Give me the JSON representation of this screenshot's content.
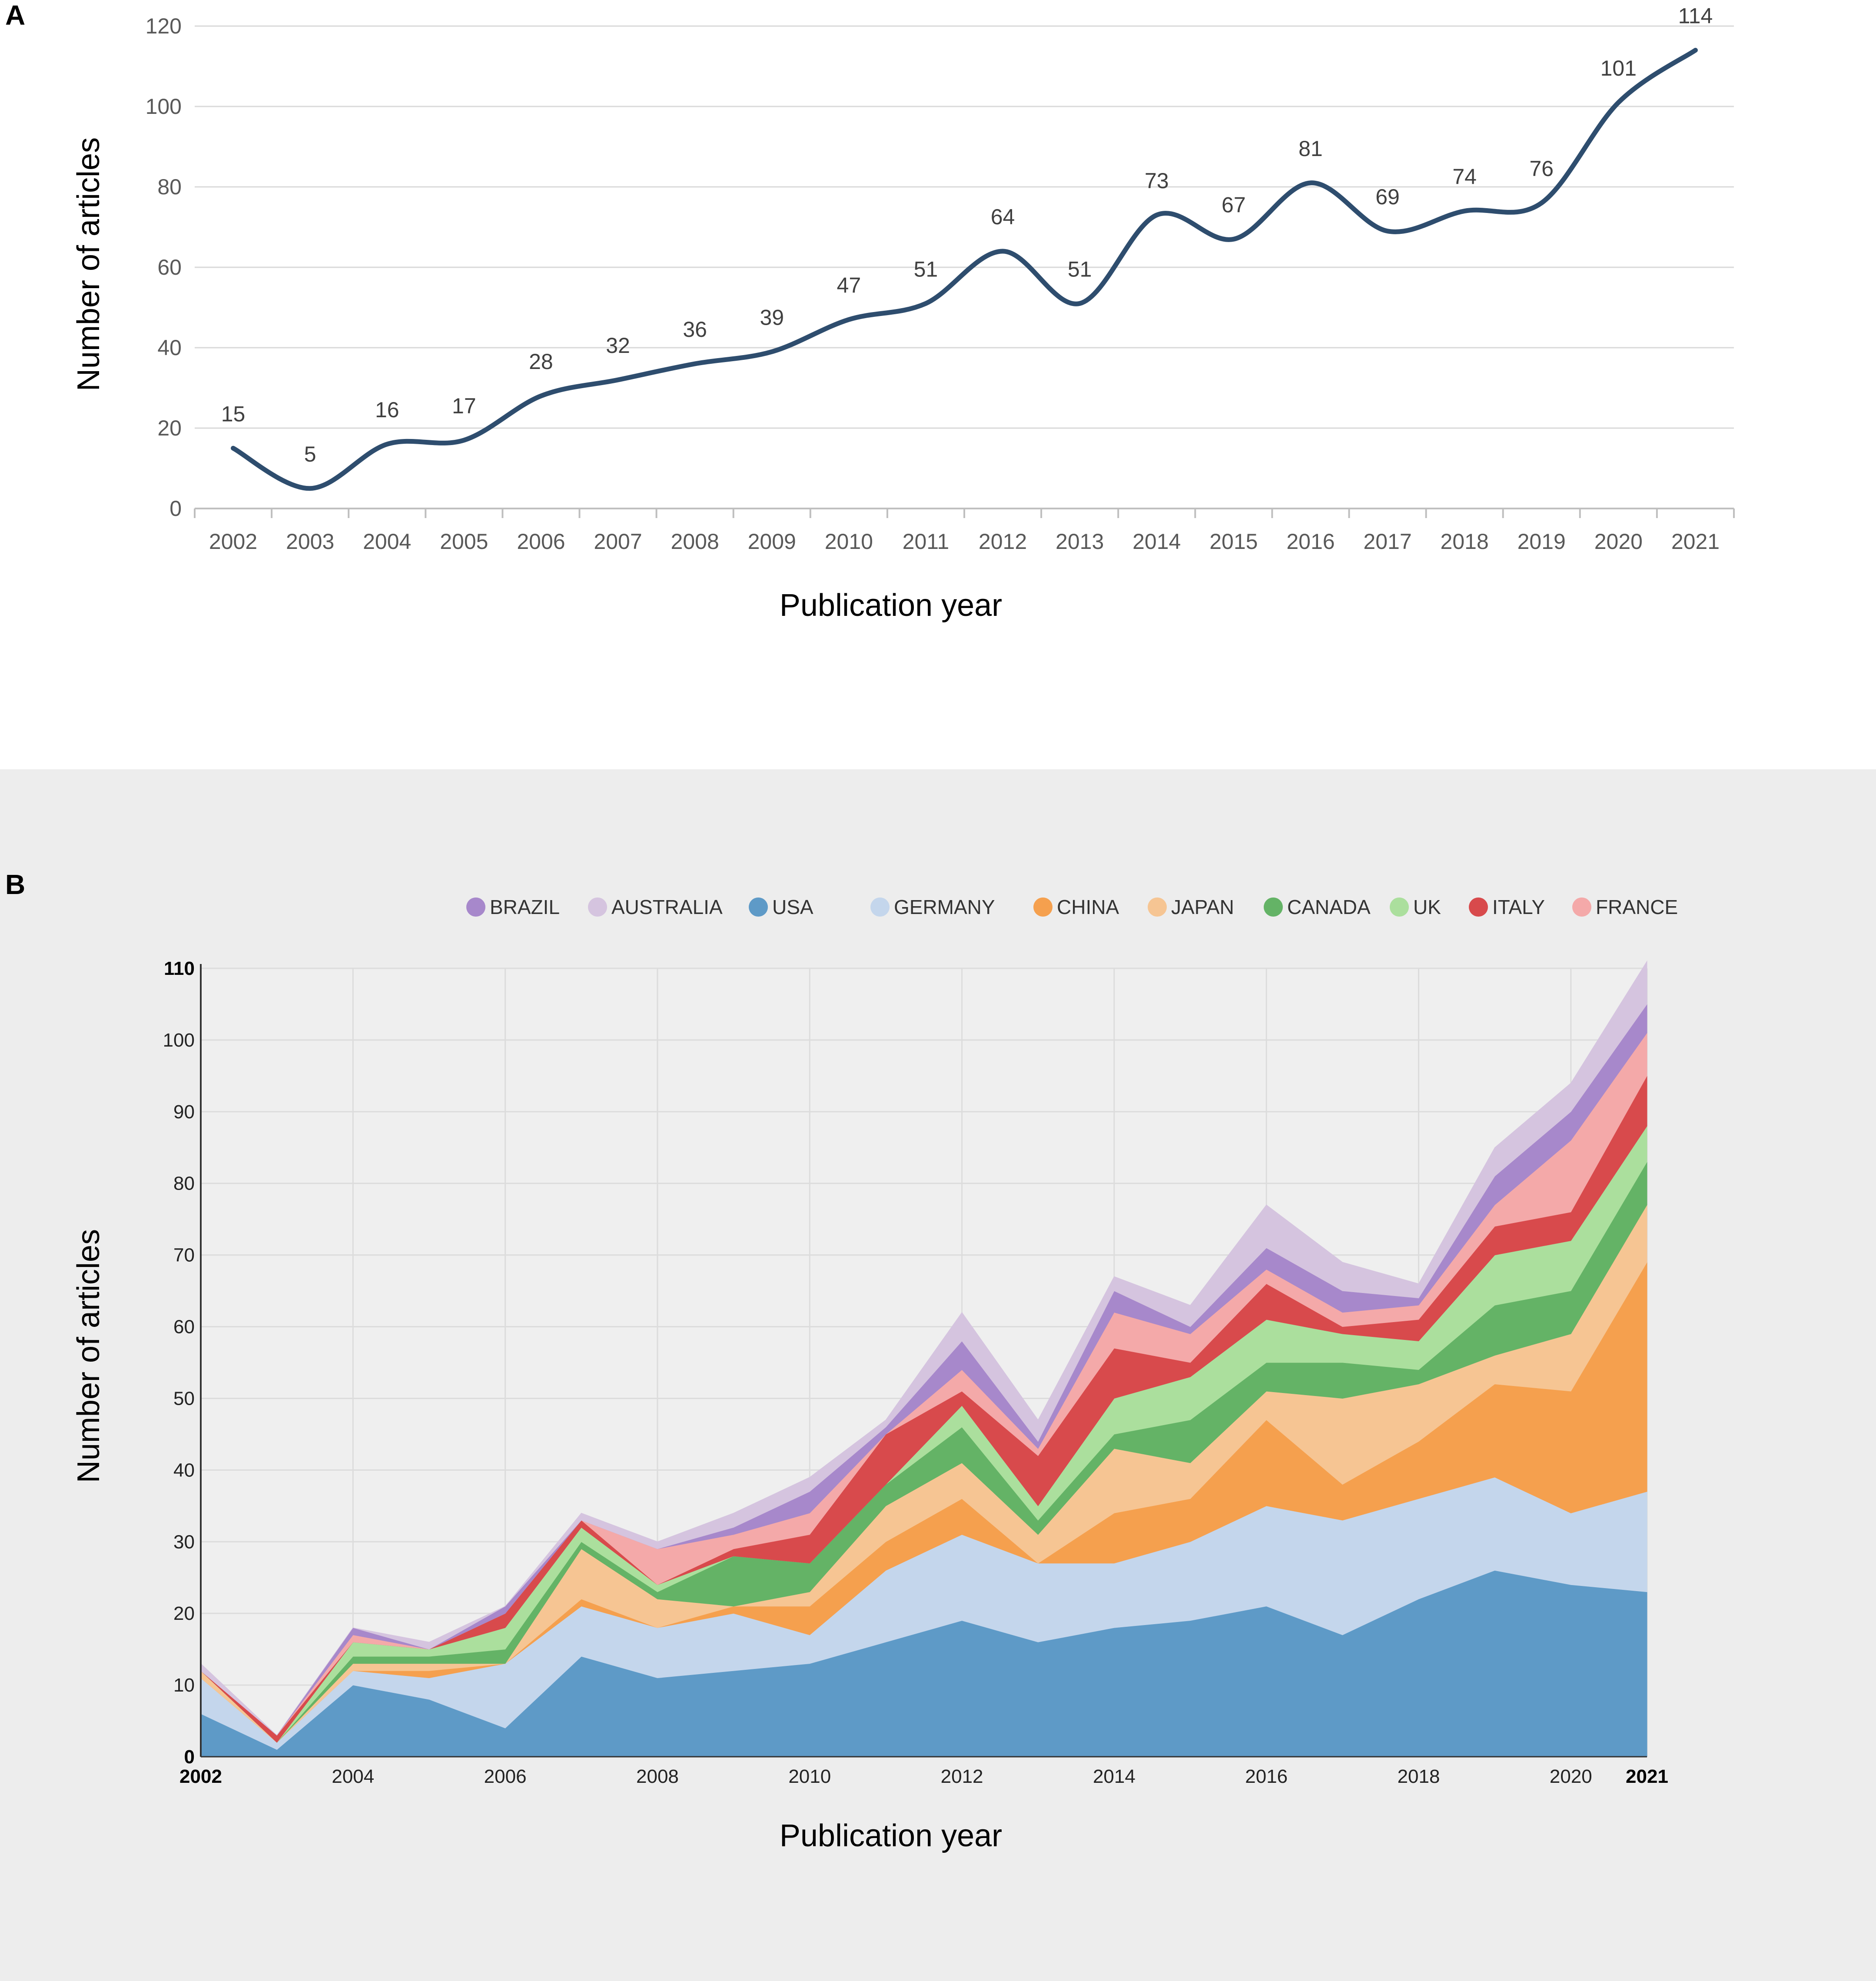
{
  "panelA": {
    "label": "A",
    "chart_data": {
      "type": "line",
      "categories": [
        "2002",
        "2003",
        "2004",
        "2005",
        "2006",
        "2007",
        "2008",
        "2009",
        "2010",
        "2011",
        "2012",
        "2013",
        "2014",
        "2015",
        "2016",
        "2017",
        "2018",
        "2019",
        "2020",
        "2021"
      ],
      "values": [
        15,
        5,
        16,
        17,
        28,
        32,
        36,
        39,
        47,
        51,
        64,
        51,
        73,
        67,
        81,
        69,
        74,
        76,
        101,
        114
      ],
      "value_labels": [
        "15",
        "5",
        "16",
        "17",
        "28",
        "32",
        "36",
        "39",
        "47",
        "51",
        "64",
        "51",
        "73",
        "67",
        "81",
        "69",
        "74",
        "76",
        "101",
        "114"
      ],
      "y_ticks": [
        "0",
        "20",
        "40",
        "60",
        "80",
        "100",
        "120"
      ],
      "ylim": [
        0,
        120
      ],
      "xlabel": "Publication year",
      "ylabel": "Number of articles",
      "line_color": "#2e4d6e",
      "grid": true
    }
  },
  "panelB": {
    "label": "B",
    "chart_data": {
      "type": "area",
      "stacked": true,
      "x": [
        2002,
        2003,
        2004,
        2005,
        2006,
        2007,
        2008,
        2009,
        2010,
        2011,
        2012,
        2013,
        2014,
        2015,
        2016,
        2017,
        2018,
        2019,
        2020,
        2021
      ],
      "series": [
        {
          "name": "USA",
          "color": "#5e9ac7",
          "values": [
            6,
            1,
            10,
            8,
            4,
            14,
            11,
            12,
            13,
            16,
            19,
            16,
            18,
            19,
            21,
            17,
            22,
            26,
            24,
            23
          ]
        },
        {
          "name": "GERMANY",
          "color": "#c4d6ec",
          "values": [
            5,
            1,
            2,
            3,
            9,
            7,
            7,
            8,
            4,
            10,
            12,
            11,
            9,
            11,
            14,
            16,
            14,
            13,
            10,
            14
          ]
        },
        {
          "name": "CHINA",
          "color": "#f5a04e",
          "values": [
            0,
            0,
            0,
            1,
            0,
            1,
            0,
            1,
            4,
            4,
            5,
            0,
            7,
            6,
            12,
            5,
            8,
            13,
            17,
            32
          ]
        },
        {
          "name": "JAPAN",
          "color": "#f6c593",
          "values": [
            1,
            0,
            1,
            1,
            0,
            7,
            4,
            0,
            2,
            5,
            5,
            4,
            9,
            5,
            4,
            12,
            8,
            4,
            8,
            8
          ]
        },
        {
          "name": "CANADA",
          "color": "#64b366",
          "values": [
            0,
            0,
            1,
            1,
            2,
            1,
            1,
            7,
            4,
            3,
            5,
            2,
            2,
            6,
            4,
            5,
            2,
            7,
            6,
            6
          ]
        },
        {
          "name": "UK",
          "color": "#abdf9d",
          "values": [
            0,
            0,
            2,
            1,
            3,
            2,
            1,
            0,
            0,
            0,
            3,
            2,
            5,
            6,
            6,
            4,
            4,
            7,
            7,
            5
          ]
        },
        {
          "name": "ITALY",
          "color": "#d84a4c",
          "values": [
            0,
            1,
            0,
            0,
            2,
            1,
            0,
            1,
            4,
            7,
            2,
            7,
            7,
            2,
            5,
            1,
            3,
            4,
            4,
            7
          ]
        },
        {
          "name": "FRANCE",
          "color": "#f4a9a9",
          "values": [
            0,
            0,
            1,
            0,
            0,
            0,
            5,
            2,
            3,
            0,
            3,
            1,
            5,
            4,
            2,
            2,
            2,
            3,
            10,
            6
          ]
        },
        {
          "name": "BRAZIL",
          "color": "#a788cb",
          "values": [
            0,
            0,
            1,
            0,
            1,
            0,
            0,
            1,
            3,
            1,
            4,
            1,
            3,
            1,
            3,
            3,
            1,
            4,
            4,
            4
          ]
        },
        {
          "name": "AUSTRALIA",
          "color": "#d5c4df",
          "values": [
            1,
            0,
            0,
            1,
            0,
            1,
            1,
            2,
            2,
            1,
            4,
            3,
            2,
            3,
            6,
            4,
            2,
            4,
            4,
            6
          ]
        }
      ],
      "legend_order": [
        "BRAZIL",
        "AUSTRALIA",
        "USA",
        "GERMANY",
        "CHINA",
        "JAPAN",
        "CANADA",
        "UK",
        "ITALY",
        "FRANCE"
      ],
      "legend_placement": "top",
      "y_ticks": [
        "0",
        "10",
        "20",
        "30",
        "40",
        "50",
        "60",
        "70",
        "80",
        "90",
        "100",
        "110"
      ],
      "x_ticks": [
        "2002",
        "2004",
        "2006",
        "2008",
        "2010",
        "2012",
        "2014",
        "2016",
        "2018",
        "2020",
        "2021"
      ],
      "ylim": [
        0,
        110
      ],
      "xlabel": "Publication year",
      "ylabel": "Number of articles",
      "grid": true
    }
  }
}
